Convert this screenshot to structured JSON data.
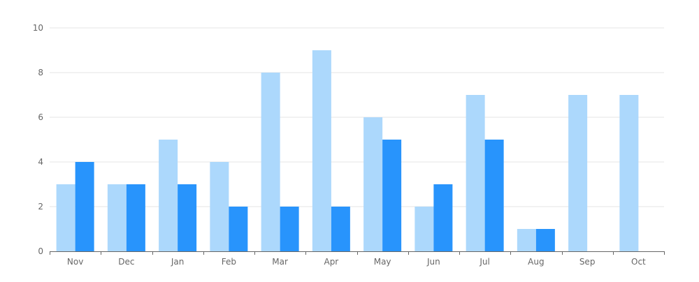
{
  "chart_data": {
    "type": "bar",
    "categories": [
      "Nov",
      "Dec",
      "Jan",
      "Feb",
      "Mar",
      "Apr",
      "May",
      "Jun",
      "Jul",
      "Aug",
      "Sep",
      "Oct"
    ],
    "series": [
      {
        "values": [
          3,
          3,
          5,
          4,
          8,
          9,
          6,
          2,
          7,
          1,
          7,
          7
        ],
        "color": "#acd8fc"
      },
      {
        "values": [
          4,
          3,
          3,
          2,
          2,
          2,
          5,
          3,
          5,
          1,
          0,
          0
        ],
        "color": "#2894fc"
      }
    ],
    "ylim": [
      0,
      10
    ],
    "yticks": [
      0,
      2,
      4,
      6,
      8,
      10
    ],
    "grid": true,
    "title": "",
    "xlabel": "",
    "ylabel": "",
    "colors": {
      "grid": "#e6e6e6",
      "axis": "#666666",
      "tick_label": "#666666"
    }
  }
}
